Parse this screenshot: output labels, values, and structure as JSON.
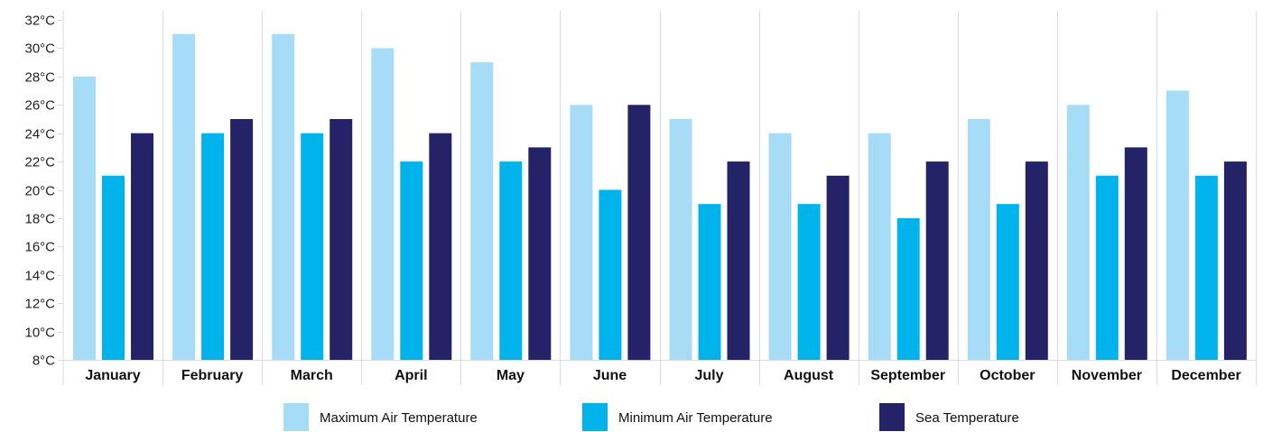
{
  "chart_data": {
    "type": "bar",
    "title": "",
    "xlabel": "",
    "ylabel": "",
    "ylim": [
      8,
      32
    ],
    "yticks": [
      "8°C",
      "10°C",
      "12°C",
      "14°C",
      "16°C",
      "18°C",
      "20°C",
      "22°C",
      "24°C",
      "26°C",
      "28°C",
      "30°C",
      "32°C"
    ],
    "ytick_values": [
      8,
      10,
      12,
      14,
      16,
      18,
      20,
      22,
      24,
      26,
      28,
      30,
      32
    ],
    "categories": [
      "January",
      "February",
      "March",
      "April",
      "May",
      "June",
      "July",
      "August",
      "September",
      "October",
      "November",
      "December"
    ],
    "series": [
      {
        "name": "Maximum Air Temperature",
        "color": "#a6dcf6",
        "values": [
          28,
          31,
          31,
          30,
          29,
          26,
          25,
          24,
          24,
          25,
          26,
          27
        ]
      },
      {
        "name": "Minimum Air Temperature",
        "color": "#00b4eb",
        "values": [
          21,
          24,
          24,
          22,
          22,
          20,
          19,
          19,
          18,
          19,
          21,
          21
        ]
      },
      {
        "name": "Sea Temperature",
        "color": "#252368",
        "values": [
          24,
          25,
          25,
          24,
          23,
          26,
          22,
          21,
          22,
          22,
          23,
          22
        ]
      }
    ],
    "grid": true,
    "legend_position": "bottom"
  }
}
